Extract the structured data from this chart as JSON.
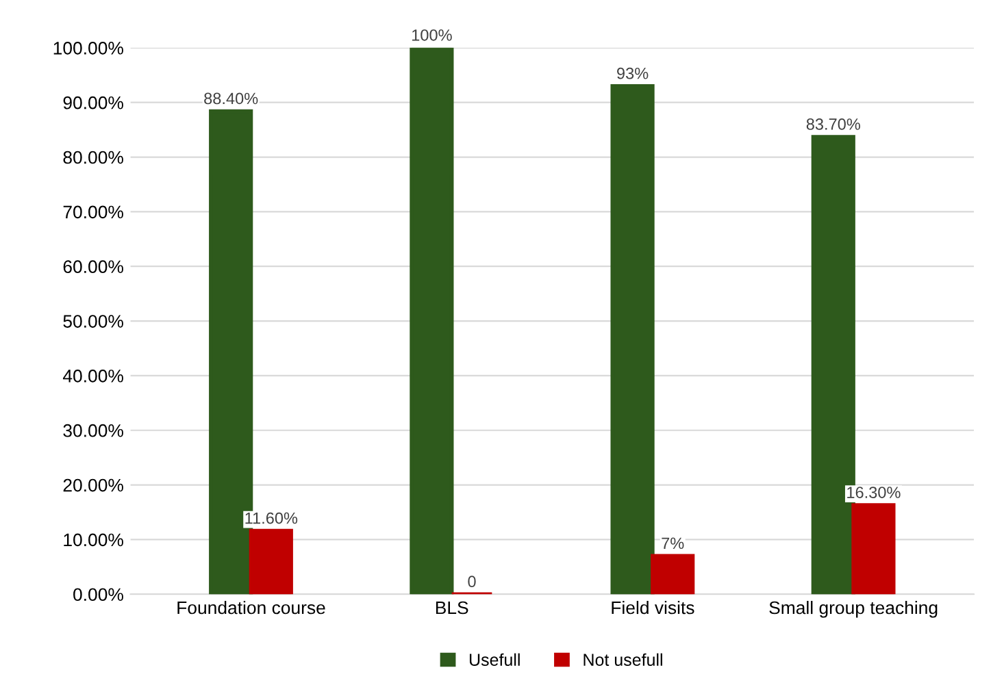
{
  "chart_data": {
    "type": "bar",
    "categories": [
      "Foundation course",
      "BLS",
      "Field visits",
      "Small group teaching"
    ],
    "series": [
      {
        "name": "Usefull",
        "color": "#2e5a1c",
        "values": [
          88.4,
          100,
          93,
          83.7
        ],
        "value_labels": [
          "88.40%",
          "100%",
          "93%",
          "83.70%"
        ]
      },
      {
        "name": "Not usefull",
        "color": "#c00000",
        "values": [
          11.6,
          0,
          7,
          16.3
        ],
        "value_labels": [
          "11.60%",
          "0",
          "7%",
          "16.30%"
        ]
      }
    ],
    "ylim": [
      0,
      100
    ],
    "yticks": [
      {
        "value": 0,
        "label": "0.00%"
      },
      {
        "value": 10,
        "label": "10.00%"
      },
      {
        "value": 20,
        "label": "20.00%"
      },
      {
        "value": 30,
        "label": "30.00%"
      },
      {
        "value": 40,
        "label": "40.00%"
      },
      {
        "value": 50,
        "label": "50.00%"
      },
      {
        "value": 60,
        "label": "60.00%"
      },
      {
        "value": 70,
        "label": "70.00%"
      },
      {
        "value": 80,
        "label": "80.00%"
      },
      {
        "value": 90,
        "label": "90.00%"
      },
      {
        "value": 100,
        "label": "100.00%"
      }
    ],
    "grid": "y",
    "legend": "bottom"
  }
}
